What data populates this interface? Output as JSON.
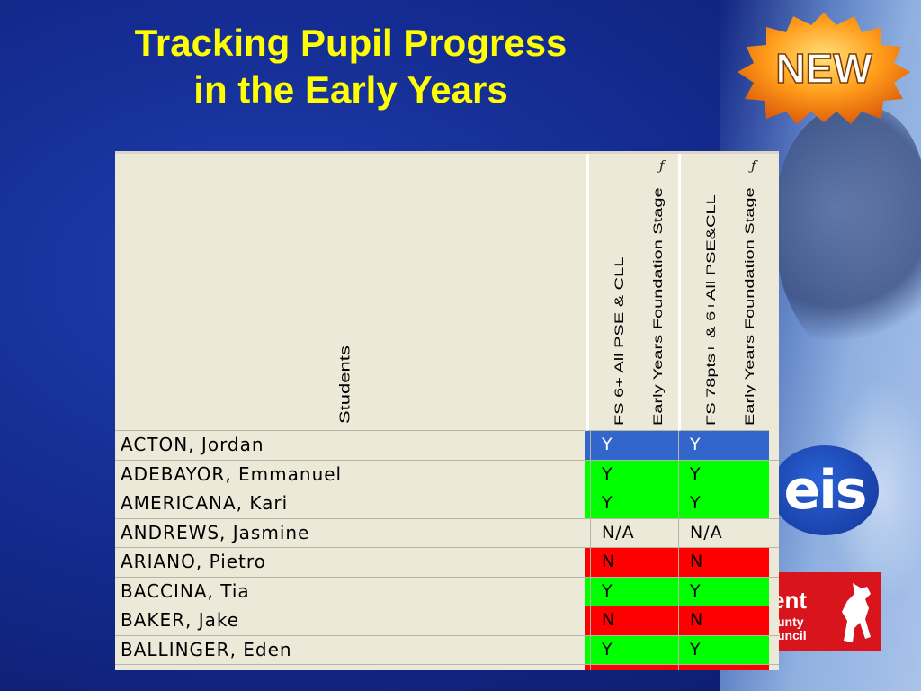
{
  "slide": {
    "title_line1": "Tracking Pupil Progress",
    "title_line2": "in the Early Years",
    "badge": "NEW",
    "logo_eis": "eis",
    "logo_kcc_line1": "ent",
    "logo_kcc_line2": "unty",
    "logo_kcc_line3": "uncil"
  },
  "colors": {
    "title": "#ffff00",
    "yes_selected": "#3366cc",
    "yes": "#00ff00",
    "no": "#ff0000",
    "na": "#ece9d8"
  },
  "table": {
    "students_header": "Students",
    "columns": [
      {
        "line1": "FS 6+ All PSE & CLL",
        "line2": "Early Years Foundation Stage",
        "func_icon": "function-icon"
      },
      {
        "line1": "FS 78pts+ & 6+All PSE&CLL",
        "line2": "Early Years Foundation Stage",
        "func_icon": "function-icon"
      }
    ],
    "rows": [
      {
        "name": "ACTON, Jordan",
        "c1": "Y",
        "c2": "Y",
        "status": "selected"
      },
      {
        "name": "ADEBAYOR, Emmanuel",
        "c1": "Y",
        "c2": "Y",
        "status": "yes"
      },
      {
        "name": "AMERICANA, Kari",
        "c1": "Y",
        "c2": "Y",
        "status": "yes"
      },
      {
        "name": "ANDREWS, Jasmine",
        "c1": "N/A",
        "c2": "N/A",
        "status": "na"
      },
      {
        "name": "ARIANO, Pietro",
        "c1": "N",
        "c2": "N",
        "status": "no"
      },
      {
        "name": "BACCINA, Tia",
        "c1": "Y",
        "c2": "Y",
        "status": "yes"
      },
      {
        "name": "BAKER, Jake",
        "c1": "N",
        "c2": "N",
        "status": "no"
      },
      {
        "name": "BALLINGER, Eden",
        "c1": "Y",
        "c2": "Y",
        "status": "yes"
      },
      {
        "name": "",
        "c1": "",
        "c2": "",
        "status": "no"
      }
    ]
  }
}
